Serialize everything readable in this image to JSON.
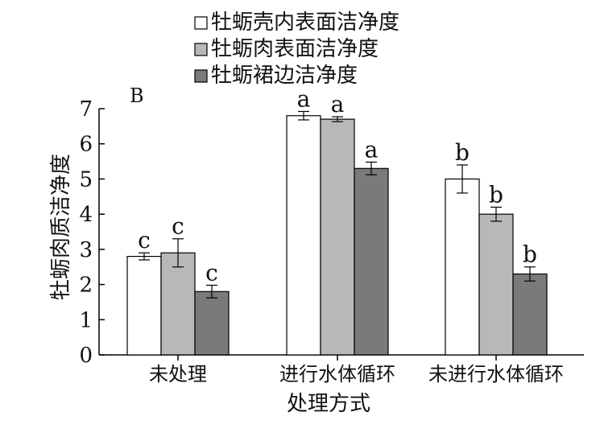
{
  "chart_data": {
    "type": "bar",
    "panel_label": "B",
    "xlabel": "处理方式",
    "ylabel": "牡蛎肉质洁净度",
    "ylim": [
      0,
      7
    ],
    "yticks": [
      "0",
      "1",
      "2",
      "3",
      "4",
      "5",
      "6",
      "7"
    ],
    "categories": [
      "未处理",
      "进行水体循环",
      "未进行水体循环"
    ],
    "legend_position": "top-center",
    "series": [
      {
        "name": "牡蛎壳内表面洁净度",
        "color": "#ffffff",
        "values": [
          2.8,
          6.8,
          5.0
        ],
        "errors": [
          0.1,
          0.12,
          0.4
        ],
        "labels": [
          "c",
          "a",
          "b"
        ]
      },
      {
        "name": "牡蛎肉表面洁净度",
        "color": "#b8b8b8",
        "values": [
          2.9,
          6.7,
          4.0
        ],
        "errors": [
          0.4,
          0.07,
          0.2
        ],
        "labels": [
          "c",
          "a",
          "b"
        ]
      },
      {
        "name": "牡蛎裙边洁净度",
        "color": "#7a7a7a",
        "values": [
          1.8,
          5.3,
          2.3
        ],
        "errors": [
          0.18,
          0.18,
          0.2
        ],
        "labels": [
          "c",
          "a",
          "b"
        ]
      }
    ]
  }
}
